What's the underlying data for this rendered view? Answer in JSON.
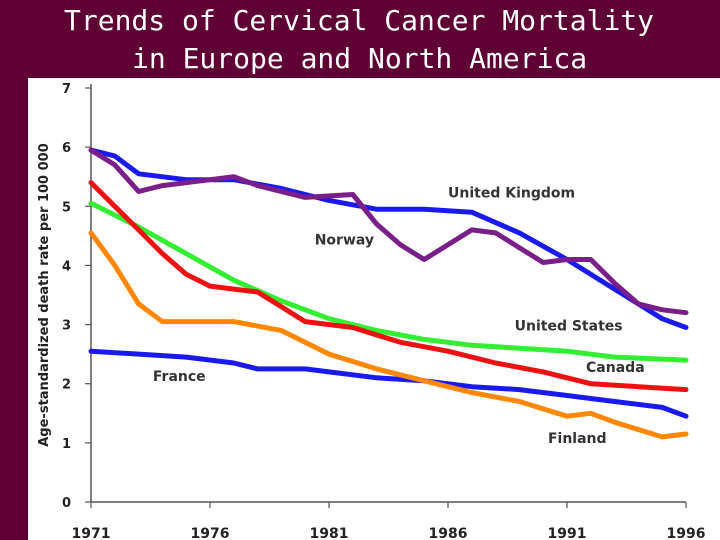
{
  "title_line1": "Trends of Cervical Cancer Mortality",
  "title_line2": "in Europe and North America",
  "chart_data": {
    "type": "line",
    "ylabel": "Age-standardized death rate per 100 000",
    "xlabel": "",
    "ylim": [
      0,
      7
    ],
    "xlim": [
      1971,
      1996
    ],
    "yticks": [
      "0",
      "1",
      "2",
      "3",
      "4",
      "5",
      "6",
      "7"
    ],
    "xticks": [
      "1971",
      "1976",
      "1981",
      "1986",
      "1991",
      "1996"
    ],
    "grid": false,
    "series": [
      {
        "name": "United Kingdom",
        "color": "#1a1aee",
        "x": [
          1971,
          1972,
          1973,
          1975,
          1977,
          1979,
          1981,
          1983,
          1985,
          1987,
          1989,
          1991,
          1993,
          1995,
          1996
        ],
        "y": [
          5.95,
          5.85,
          5.55,
          5.45,
          5.45,
          5.3,
          5.1,
          4.95,
          4.95,
          4.9,
          4.55,
          4.1,
          3.6,
          3.1,
          2.95
        ]
      },
      {
        "name": "Norway",
        "color": "#7a1f8a",
        "x": [
          1971,
          1972,
          1973,
          1974,
          1976,
          1977,
          1978,
          1980,
          1982,
          1983,
          1984,
          1985,
          1987,
          1988,
          1989,
          1990,
          1991,
          1992,
          1993,
          1994,
          1995,
          1996
        ],
        "y": [
          5.95,
          5.7,
          5.25,
          5.35,
          5.45,
          5.5,
          5.35,
          5.15,
          5.2,
          4.7,
          4.35,
          4.1,
          4.6,
          4.55,
          4.3,
          4.05,
          4.1,
          4.1,
          3.7,
          3.35,
          3.25,
          3.2
        ]
      },
      {
        "name": "United States",
        "color": "#33ee33",
        "x": [
          1971,
          1973,
          1975,
          1977,
          1979,
          1981,
          1983,
          1985,
          1987,
          1989,
          1991,
          1993,
          1996
        ],
        "y": [
          5.05,
          4.65,
          4.2,
          3.75,
          3.4,
          3.1,
          2.9,
          2.75,
          2.65,
          2.6,
          2.55,
          2.45,
          2.4
        ]
      },
      {
        "name": "Canada",
        "color": "#ee1111",
        "x": [
          1971,
          1972,
          1973,
          1974,
          1975,
          1976,
          1977,
          1978,
          1979,
          1980,
          1982,
          1984,
          1986,
          1988,
          1990,
          1991,
          1992,
          1994,
          1996
        ],
        "y": [
          5.4,
          5.0,
          4.6,
          4.2,
          3.85,
          3.65,
          3.6,
          3.55,
          3.3,
          3.05,
          2.95,
          2.7,
          2.55,
          2.35,
          2.2,
          2.1,
          2.0,
          1.95,
          1.9
        ]
      },
      {
        "name": "France",
        "color": "#1a1aee",
        "x": [
          1971,
          1973,
          1975,
          1977,
          1978,
          1980,
          1981,
          1983,
          1985,
          1987,
          1989,
          1991,
          1993,
          1995,
          1996
        ],
        "y": [
          2.55,
          2.5,
          2.45,
          2.35,
          2.25,
          2.25,
          2.2,
          2.1,
          2.05,
          1.95,
          1.9,
          1.8,
          1.7,
          1.6,
          1.45
        ]
      },
      {
        "name": "Finland",
        "color": "#ff8800",
        "x": [
          1971,
          1972,
          1973,
          1974,
          1976,
          1977,
          1979,
          1981,
          1983,
          1985,
          1987,
          1989,
          1991,
          1992,
          1993,
          1995,
          1996
        ],
        "y": [
          4.55,
          4.0,
          3.35,
          3.05,
          3.05,
          3.05,
          2.9,
          2.5,
          2.25,
          2.05,
          1.85,
          1.7,
          1.45,
          1.5,
          1.35,
          1.1,
          1.15
        ]
      }
    ],
    "annotations": [
      {
        "series": "United Kingdom",
        "text": "United Kingdom",
        "x": 1986.0,
        "y": 5.15
      },
      {
        "series": "Norway",
        "text": "Norway",
        "x": 1980.4,
        "y": 4.35
      },
      {
        "series": "United States",
        "text": "United States",
        "x": 1988.8,
        "y": 2.9
      },
      {
        "series": "Canada",
        "text": "Canada",
        "x": 1991.8,
        "y": 2.2
      },
      {
        "series": "France",
        "text": "France",
        "x": 1973.6,
        "y": 2.05
      },
      {
        "series": "Finland",
        "text": "Finland",
        "x": 1990.2,
        "y": 1.0
      }
    ]
  }
}
